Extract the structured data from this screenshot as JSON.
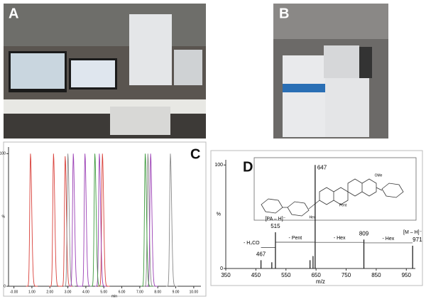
{
  "photos": [
    {
      "label": "A"
    },
    {
      "label": "B"
    }
  ],
  "chart_data": [
    {
      "type": "chromatogram",
      "label": "C",
      "x_label": "min",
      "y_label": "%",
      "xlim": [
        -0.3,
        10.4
      ],
      "ylim": [
        0,
        105
      ],
      "xticks": [
        {
          "value": 0,
          "label": "-0.00"
        },
        {
          "value": 1,
          "label": "1.00"
        },
        {
          "value": 2,
          "label": "2.00"
        },
        {
          "value": 3,
          "label": "3.00"
        },
        {
          "value": 4,
          "label": "4.00"
        },
        {
          "value": 5,
          "label": "5.00"
        },
        {
          "value": 6,
          "label": "6.00"
        },
        {
          "value": 7,
          "label": "7.00"
        },
        {
          "value": 8,
          "label": "8.00"
        },
        {
          "value": 9,
          "label": "9.00"
        },
        {
          "value": 10,
          "label": "10.00"
        }
      ],
      "yticks": [
        0,
        100
      ],
      "series": [
        {
          "color": "#d9403a",
          "x": [
            0.92,
            2.2,
            2.85,
            4.92
          ],
          "values": [
            100,
            100,
            98,
            100
          ]
        },
        {
          "color": "#8a8a8a",
          "x": [
            3.0,
            7.45,
            8.7
          ],
          "values": [
            100,
            100,
            100
          ]
        },
        {
          "color": "#9b3fb5",
          "x": [
            3.3,
            3.95,
            4.75,
            7.6
          ],
          "values": [
            100,
            100,
            100,
            100
          ]
        },
        {
          "color": "#3c9a3c",
          "x": [
            4.5,
            7.3
          ],
          "values": [
            100,
            100
          ]
        }
      ]
    },
    {
      "type": "spectrum",
      "label": "D",
      "x_label": "m/z",
      "y_label": "%",
      "xlim": [
        350,
        980
      ],
      "ylim": [
        0,
        105
      ],
      "xticks": [
        350,
        450,
        550,
        650,
        750,
        850,
        950
      ],
      "yticks": [
        0,
        100
      ],
      "color": "#111111",
      "x": [
        467,
        503,
        515,
        630,
        640,
        647,
        809,
        971
      ],
      "values": [
        8,
        6,
        35,
        8,
        12,
        100,
        28,
        22
      ],
      "ions": [
        "[PA – H]⁻",
        "[M – H]⁻"
      ],
      "losses": [
        "- H₂CO",
        "- Pent",
        "- Hex",
        "- Hex"
      ],
      "structure_labels": [
        "OMe",
        "Pent",
        "Hex"
      ]
    }
  ]
}
